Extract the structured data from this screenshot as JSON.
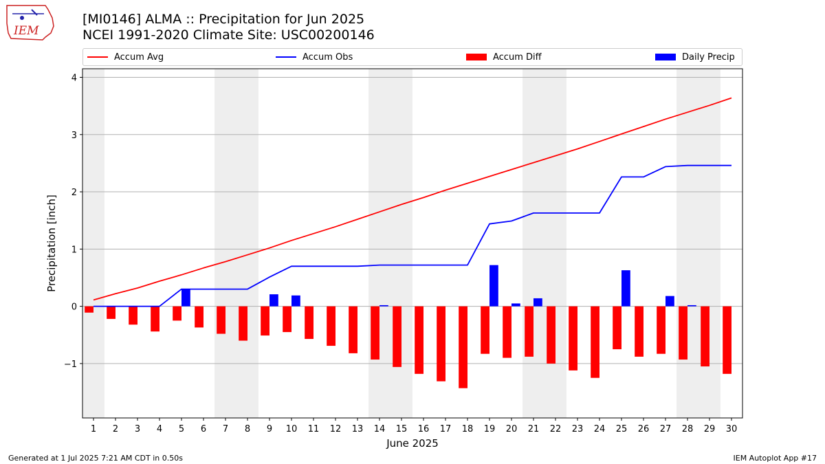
{
  "logo_text": "IEM",
  "title_line1": "[MI0146] ALMA :: Precipitation for Jun 2025",
  "title_line2": "NCEI 1991-2020 Climate Site: USC00200146",
  "legend": {
    "accum_avg": "Accum Avg",
    "accum_obs": "Accum Obs",
    "accum_diff": "Accum Diff",
    "daily_precip": "Daily Precip"
  },
  "colors": {
    "avg": "#ff0000",
    "obs": "#0000ff",
    "diff": "#ff0000",
    "daily": "#0000ff",
    "weekend_shade": "#eeeeee",
    "grid": "#b0b0b0"
  },
  "footer_left": "Generated at 1 Jul 2025 7:21 AM CDT in 0.50s",
  "footer_right": "IEM Autoplot App #17",
  "chart_data": {
    "type": "bar",
    "xlabel": "June 2025",
    "ylabel": "Precipitation [inch]",
    "xlim": [
      0.5,
      30.5
    ],
    "ylim": [
      -1.95,
      4.15
    ],
    "yticks": [
      -1,
      0,
      1,
      2,
      3,
      4
    ],
    "grid": "horizontal",
    "legend_position": "top",
    "days": [
      1,
      2,
      3,
      4,
      5,
      6,
      7,
      8,
      9,
      10,
      11,
      12,
      13,
      14,
      15,
      16,
      17,
      18,
      19,
      20,
      21,
      22,
      23,
      24,
      25,
      26,
      27,
      28,
      29,
      30
    ],
    "shaded_days": [
      1,
      7,
      8,
      14,
      15,
      21,
      22,
      28,
      29
    ],
    "series": [
      {
        "name": "Accum Avg",
        "kind": "line",
        "values": [
          0.11,
          0.22,
          0.32,
          0.44,
          0.55,
          0.67,
          0.78,
          0.9,
          1.02,
          1.15,
          1.27,
          1.39,
          1.52,
          1.65,
          1.78,
          1.9,
          2.03,
          2.15,
          2.27,
          2.39,
          2.51,
          2.63,
          2.75,
          2.88,
          3.01,
          3.14,
          3.27,
          3.39,
          3.51,
          3.64
        ]
      },
      {
        "name": "Accum Obs",
        "kind": "line",
        "values": [
          0.0,
          0.0,
          0.0,
          0.0,
          0.3,
          0.3,
          0.3,
          0.3,
          0.51,
          0.7,
          0.7,
          0.7,
          0.7,
          0.72,
          0.72,
          0.72,
          0.72,
          0.72,
          1.44,
          1.49,
          1.63,
          1.63,
          1.63,
          1.63,
          2.26,
          2.26,
          2.44,
          2.46,
          2.46,
          2.46
        ]
      },
      {
        "name": "Accum Diff",
        "kind": "bar",
        "values": [
          -0.11,
          -0.22,
          -0.32,
          -0.44,
          -0.25,
          -0.37,
          -0.48,
          -0.6,
          -0.51,
          -0.45,
          -0.57,
          -0.69,
          -0.82,
          -0.93,
          -1.06,
          -1.18,
          -1.31,
          -1.43,
          -0.83,
          -0.9,
          -0.88,
          -1.0,
          -1.12,
          -1.25,
          -0.75,
          -0.88,
          -0.83,
          -0.93,
          -1.05,
          -1.18
        ]
      },
      {
        "name": "Daily Precip",
        "kind": "bar",
        "values": [
          0,
          0,
          0,
          0,
          0.3,
          0,
          0,
          0,
          0.21,
          0.19,
          0,
          0,
          0,
          0.02,
          0,
          0,
          0,
          0,
          0.72,
          0.05,
          0.14,
          0,
          0,
          0,
          0.63,
          0,
          0.18,
          0.02,
          0,
          0
        ]
      }
    ]
  }
}
